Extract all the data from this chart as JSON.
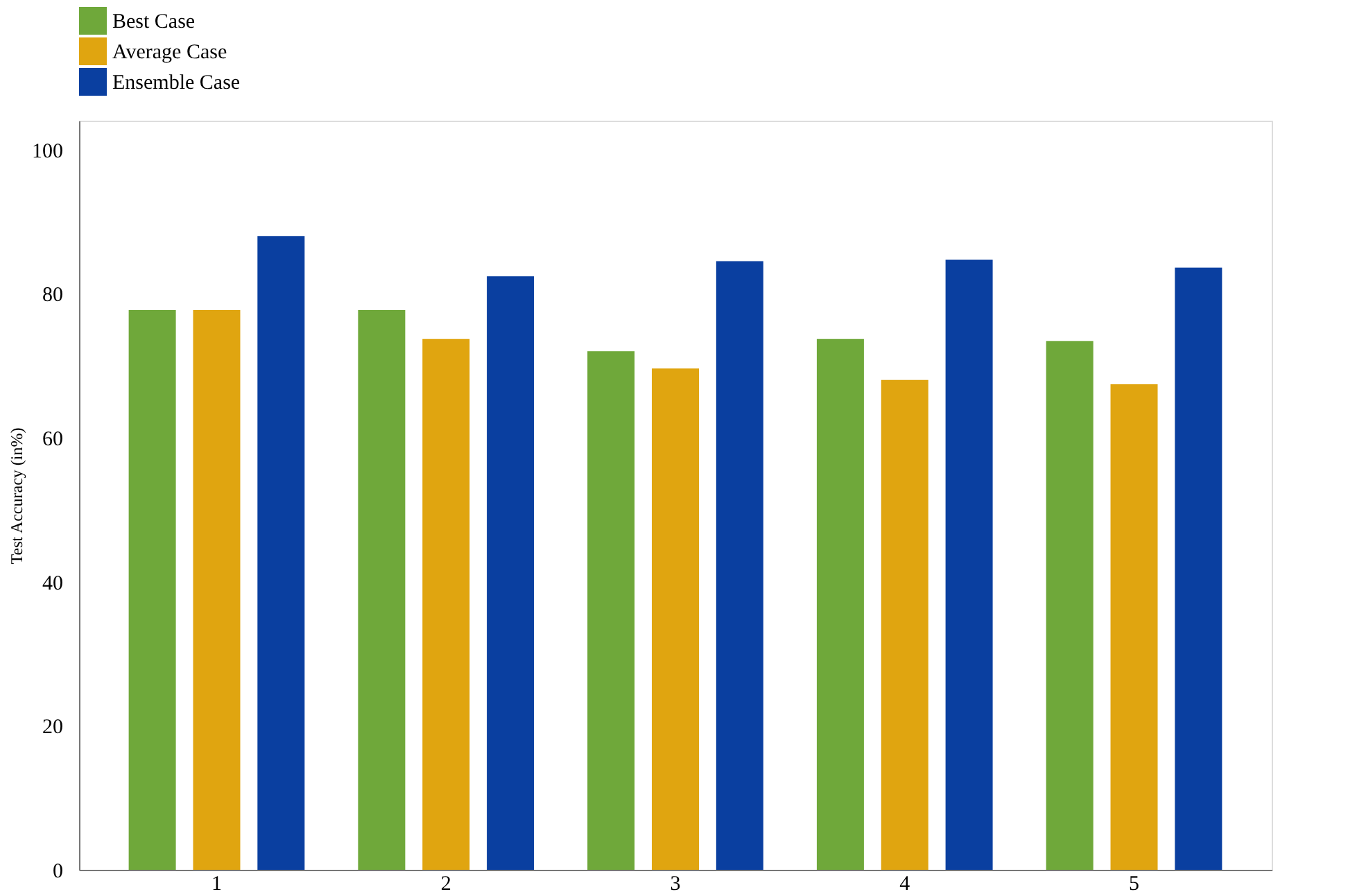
{
  "chart_data": {
    "type": "bar",
    "ylabel": "Test Accuracy (in%)",
    "categories": [
      "1",
      "2",
      "3",
      "4",
      "5"
    ],
    "series": [
      {
        "name": "Best Case",
        "color": "#6fa83a",
        "values": [
          77.7,
          77.7,
          72.0,
          73.7,
          73.4
        ]
      },
      {
        "name": "Average Case",
        "color": "#e0a510",
        "values": [
          77.7,
          73.7,
          69.6,
          68.0,
          67.4
        ]
      },
      {
        "name": "Ensemble Case",
        "color": "#0a3fa0",
        "values": [
          88.0,
          82.4,
          84.5,
          84.7,
          83.6
        ]
      }
    ],
    "ylim": [
      0,
      104
    ],
    "yticks": [
      0,
      20,
      40,
      60,
      80,
      100
    ],
    "grid": false,
    "legend": "top"
  }
}
